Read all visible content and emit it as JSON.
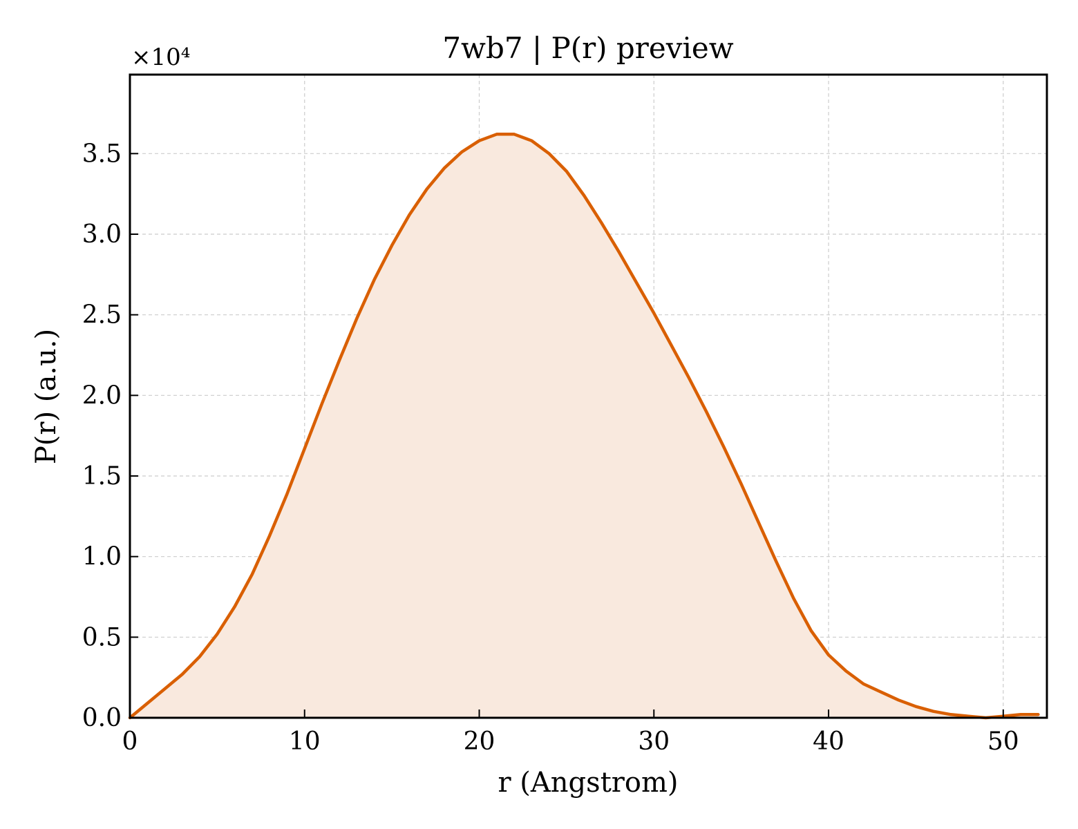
{
  "chart_data": {
    "type": "area",
    "title": "7wb7 | P(r) preview",
    "xlabel": "r (Angstrom)",
    "ylabel": "P(r) (a.u.)",
    "y_offset_label": "×10⁴",
    "y_scale_factor": 10000,
    "xlim": [
      0,
      52.5
    ],
    "ylim": [
      0,
      3.99
    ],
    "x_ticks": [
      0,
      10,
      20,
      30,
      40,
      50
    ],
    "x_tick_labels": [
      "0",
      "10",
      "20",
      "30",
      "40",
      "50"
    ],
    "y_ticks": [
      0,
      0.5,
      1.0,
      1.5,
      2.0,
      2.5,
      3.0,
      3.5
    ],
    "y_tick_labels": [
      "0.0",
      "0.5",
      "1.0",
      "1.5",
      "2.0",
      "2.5",
      "3.0",
      "3.5"
    ],
    "grid": true,
    "colors": {
      "line": "#d95f02",
      "fill": "#f9e9de",
      "grid": "#cccccc"
    },
    "series": [
      {
        "x": [
          0,
          1,
          2,
          3,
          4,
          5,
          6,
          7,
          8,
          9,
          10,
          11,
          12,
          13,
          14,
          15,
          16,
          17,
          18,
          19,
          20,
          21,
          22,
          23,
          24,
          25,
          26,
          27,
          28,
          29,
          30,
          31,
          32,
          33,
          34,
          35,
          36,
          37,
          38,
          39,
          40,
          41,
          42,
          43,
          44,
          45,
          46,
          47,
          48,
          49,
          50,
          51,
          52
        ],
        "y": [
          0,
          0.09,
          0.18,
          0.27,
          0.38,
          0.52,
          0.69,
          0.89,
          1.13,
          1.39,
          1.67,
          1.95,
          2.22,
          2.48,
          2.72,
          2.93,
          3.12,
          3.28,
          3.41,
          3.51,
          3.58,
          3.62,
          3.62,
          3.58,
          3.5,
          3.39,
          3.24,
          3.07,
          2.89,
          2.7,
          2.51,
          2.31,
          2.11,
          1.9,
          1.68,
          1.45,
          1.21,
          0.97,
          0.74,
          0.54,
          0.39,
          0.29,
          0.21,
          0.16,
          0.11,
          0.07,
          0.04,
          0.02,
          0.01,
          0.0,
          0.01,
          0.02,
          0.02
        ]
      }
    ]
  }
}
